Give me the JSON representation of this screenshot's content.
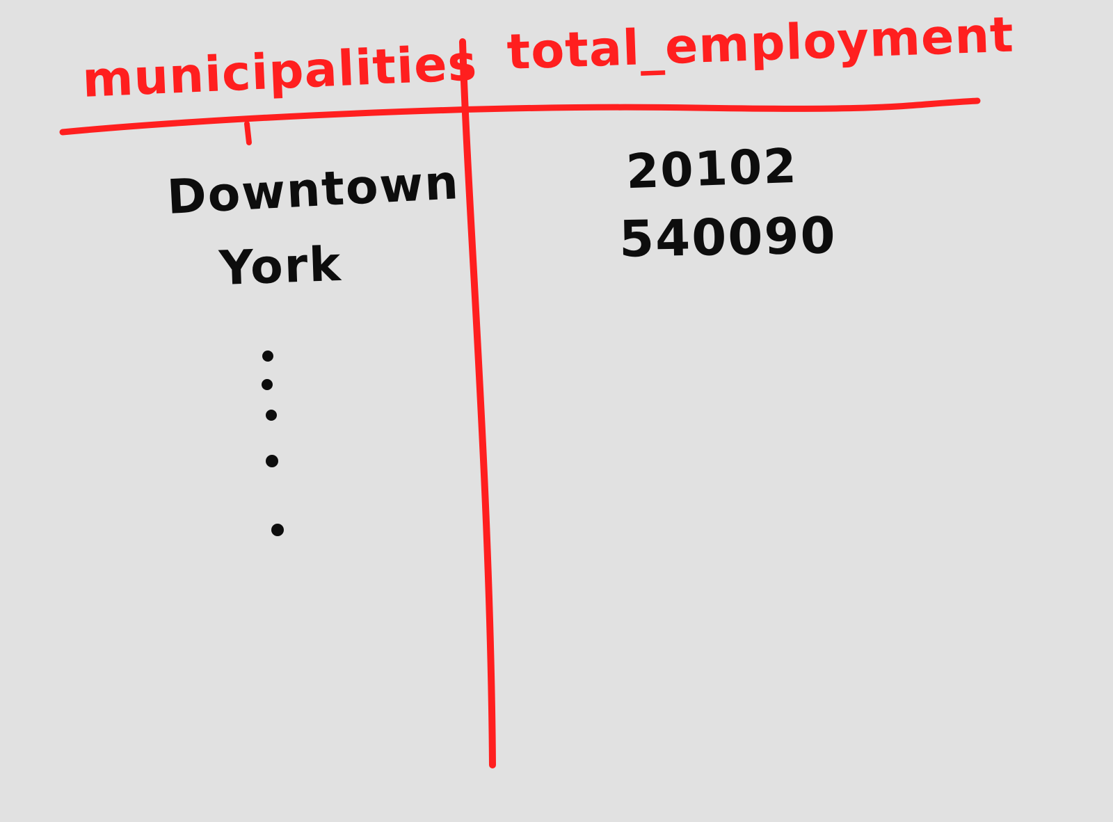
{
  "board": {
    "ink_colors": {
      "header": "#ff1f1f",
      "body": "#0d0d0d",
      "background": "#e1e1e1"
    },
    "columns": [
      "municipalities",
      "total_employment"
    ],
    "rows": [
      {
        "municipality": "Downtown",
        "total_employment": "20102"
      },
      {
        "municipality": "York",
        "total_employment": "540090"
      }
    ],
    "continuation": "vertical dots"
  }
}
